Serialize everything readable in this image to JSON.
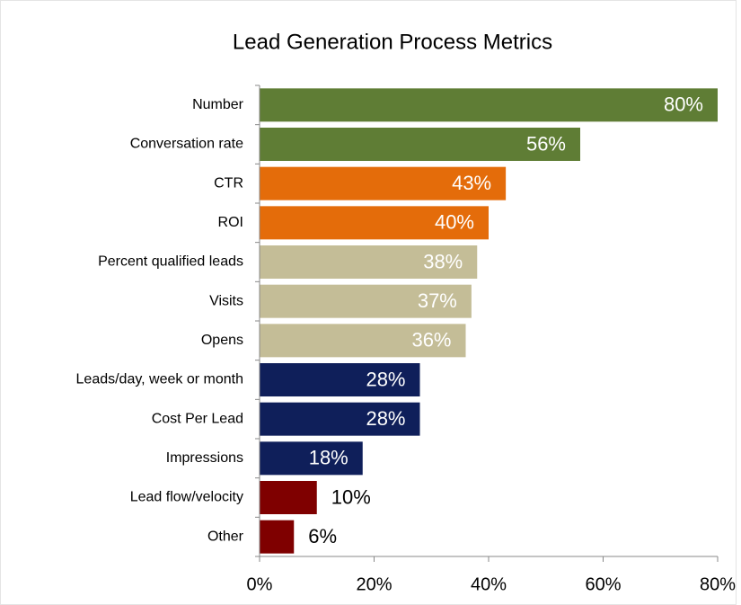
{
  "chart_data": {
    "type": "bar",
    "orientation": "horizontal",
    "title": "Lead Generation Process Metrics",
    "categories": [
      "Number",
      "Conversation rate",
      "CTR",
      "ROI",
      "Percent qualified leads",
      "Visits",
      "Opens",
      "Leads/day, week or month",
      "Cost Per Lead",
      "Impressions",
      "Lead flow/velocity",
      "Other"
    ],
    "values": [
      80,
      56,
      43,
      40,
      38,
      37,
      36,
      28,
      28,
      18,
      10,
      6
    ],
    "value_labels": [
      "80%",
      "56%",
      "43%",
      "40%",
      "38%",
      "37%",
      "36%",
      "28%",
      "28%",
      "18%",
      "10%",
      "6%"
    ],
    "colors": [
      "#5f7d35",
      "#5f7d35",
      "#e46c0a",
      "#e46c0a",
      "#c4bd97",
      "#c4bd97",
      "#c4bd97",
      "#0f1f5a",
      "#0f1f5a",
      "#0f1f5a",
      "#7f0000",
      "#7f0000"
    ],
    "xlim": [
      0,
      80
    ],
    "xticks": [
      {
        "value": 0,
        "label": "0%"
      },
      {
        "value": 20,
        "label": "20%"
      },
      {
        "value": 40,
        "label": "40%"
      },
      {
        "value": 60,
        "label": "60%"
      },
      {
        "value": 80,
        "label": "80%"
      }
    ]
  }
}
